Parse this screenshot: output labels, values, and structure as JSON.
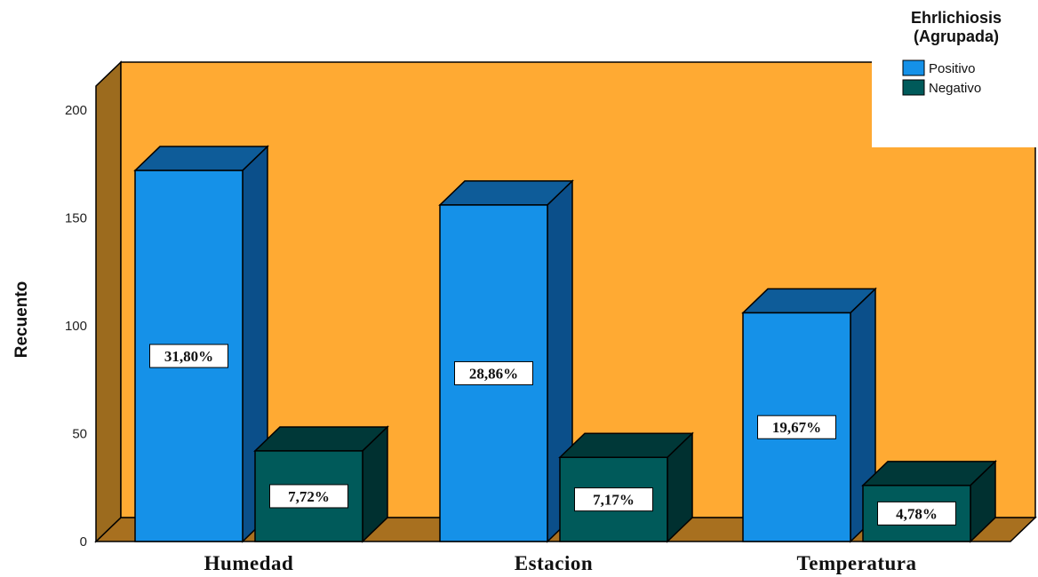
{
  "chart_data": {
    "type": "bar",
    "title": "",
    "xlabel": "",
    "ylabel": "Recuento",
    "ylim": [
      0,
      200
    ],
    "yticks": [
      0,
      50,
      100,
      150,
      200
    ],
    "categories": [
      "Humedad",
      "Estacion",
      "Temperatura"
    ],
    "legend": {
      "title_lines": [
        "Ehrlichiosis",
        "(Agrupada)"
      ],
      "placement": "top-right"
    },
    "series": [
      {
        "name": "Positivo",
        "values": [
          172,
          156,
          106
        ],
        "labels": [
          "31,80%",
          "28,86%",
          "19,67%"
        ]
      },
      {
        "name": "Negativo",
        "values": [
          42,
          39,
          26
        ],
        "labels": [
          "7,72%",
          "7,17%",
          "4,78%"
        ]
      }
    ],
    "grid": false,
    "style": "3d",
    "colors": {
      "background_wall": "#FFAA33",
      "wall_side": "#9C6B1E",
      "floor": "#A8701F",
      "Positivo_front": "#1591E8",
      "Positivo_top": "#0E5C99",
      "Positivo_side": "#0B4F8A",
      "Negativo_front": "#005A5A",
      "Negativo_top": "#003838",
      "Negativo_side": "#003030"
    }
  }
}
